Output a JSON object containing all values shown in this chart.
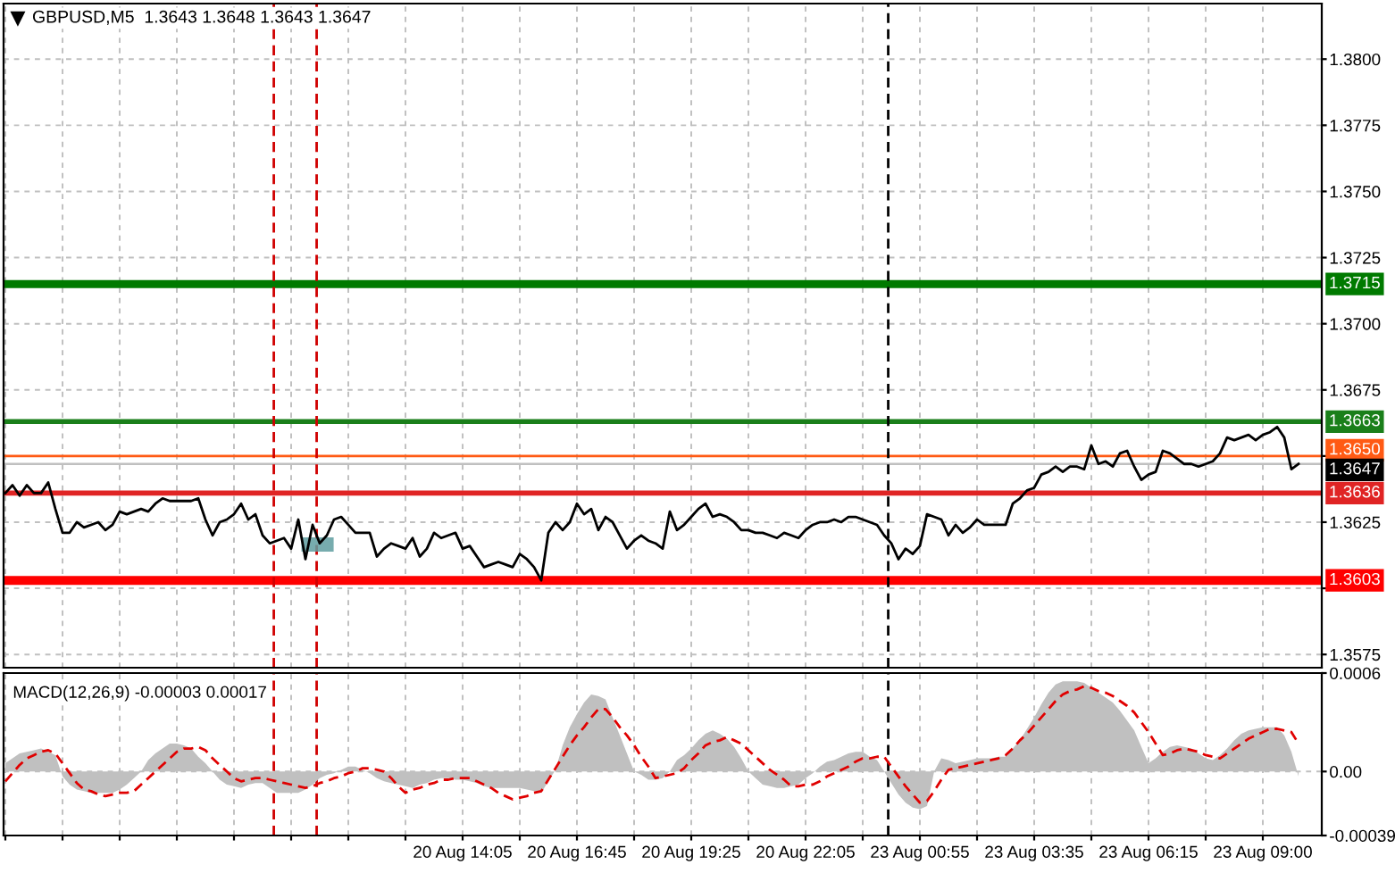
{
  "chart_data": [
    {
      "type": "line",
      "title": "GBPUSD,M5  1.3643 1.3648 1.3643 1.3647",
      "color": "#000000",
      "categories": [
        null,
        null,
        null,
        null,
        null,
        null,
        null,
        null,
        null,
        null,
        null,
        null,
        null,
        null,
        null,
        null,
        null,
        null,
        null,
        null,
        null,
        null,
        null,
        null,
        null,
        null,
        null,
        null,
        null,
        null,
        null,
        null,
        null,
        null,
        null,
        null,
        null,
        null,
        null,
        null,
        null,
        null,
        null,
        null,
        null,
        null,
        null,
        null,
        null,
        null,
        null,
        null,
        null,
        null,
        null,
        null,
        null,
        null,
        null,
        null,
        null,
        null,
        null,
        null,
        null,
        null,
        null,
        null,
        null,
        null,
        null,
        null,
        null,
        null,
        null,
        null,
        null,
        null,
        null,
        null,
        null,
        null,
        null,
        null,
        null,
        null,
        null,
        null,
        null,
        null,
        null,
        null,
        null,
        null,
        null,
        null,
        null,
        null,
        null,
        null,
        null,
        null,
        null,
        null,
        null,
        null,
        null,
        null,
        null,
        null,
        null,
        null,
        null,
        null,
        null,
        null,
        null,
        null,
        null,
        null,
        null,
        null,
        null,
        null,
        null,
        null,
        null,
        null,
        null,
        null,
        null,
        null,
        null,
        null,
        null,
        null,
        null,
        null,
        null,
        null,
        null,
        null,
        null,
        null,
        null,
        null,
        null,
        null,
        null,
        null,
        null,
        null,
        null,
        null,
        null,
        null,
        null,
        null,
        null,
        null,
        null,
        null,
        null,
        null,
        null,
        null,
        null,
        null,
        null,
        null,
        null,
        null,
        null,
        null,
        null,
        null,
        null,
        null,
        null,
        null,
        null,
        null
      ],
      "values": [
        1.3636,
        1.3639,
        1.3635,
        1.3639,
        1.3636,
        1.3636,
        1.364,
        1.363,
        1.3621,
        1.3621,
        1.3625,
        1.3623,
        1.3624,
        1.3625,
        1.3622,
        1.3624,
        1.3629,
        1.3628,
        1.3629,
        1.363,
        1.3629,
        1.3632,
        1.3634,
        1.3633,
        1.3633,
        1.3633,
        1.3633,
        1.3634,
        1.3626,
        1.362,
        1.3625,
        1.3626,
        1.3628,
        1.3632,
        1.3626,
        1.3628,
        1.362,
        1.3617,
        1.3618,
        1.3619,
        1.3615,
        1.3626,
        1.3611,
        1.3624,
        1.3617,
        1.362,
        1.3626,
        1.3627,
        1.3624,
        1.3621,
        1.3621,
        1.3621,
        1.3612,
        1.3615,
        1.3617,
        1.3616,
        1.3615,
        1.3619,
        1.3612,
        1.3615,
        1.3621,
        1.3619,
        1.362,
        1.3621,
        1.3615,
        1.3616,
        1.3612,
        1.3608,
        1.3609,
        1.361,
        1.3609,
        1.3608,
        1.3613,
        1.3611,
        1.3608,
        1.3603,
        1.3621,
        1.3625,
        1.3622,
        1.3625,
        1.3632,
        1.3628,
        1.363,
        1.3622,
        1.3627,
        1.3625,
        1.362,
        1.3615,
        1.3618,
        1.362,
        1.3618,
        1.3617,
        1.3615,
        1.3629,
        1.3622,
        1.3624,
        1.3627,
        1.363,
        1.3632,
        1.3627,
        1.3628,
        1.3627,
        1.3625,
        1.3622,
        1.3622,
        1.3621,
        1.3621,
        1.362,
        1.3619,
        1.3621,
        1.362,
        1.3619,
        1.3622,
        1.3624,
        1.3625,
        1.3625,
        1.3626,
        1.3625,
        1.3627,
        1.3627,
        1.3626,
        1.3625,
        1.3624,
        1.362,
        1.3617,
        1.3611,
        1.3615,
        1.3613,
        1.3616,
        1.3628,
        1.3627,
        1.3626,
        1.362,
        1.3624,
        1.3621,
        1.3623,
        1.3626,
        1.3624,
        1.3624,
        1.3624,
        1.3624,
        1.3632,
        1.3634,
        1.3637,
        1.3638,
        1.3643,
        1.3644,
        1.3646,
        1.3644,
        1.3646,
        1.3646,
        1.3645,
        1.3654,
        1.3647,
        1.3648,
        1.3646,
        1.3651,
        1.3652,
        1.3646,
        1.3641,
        1.3643,
        1.3644,
        1.3652,
        1.3651,
        1.3649,
        1.3647,
        1.3647,
        1.3646,
        1.3647,
        1.3648,
        1.3651,
        1.3657,
        1.3656,
        1.3657,
        1.3658,
        1.3656,
        1.3658,
        1.3659,
        1.3661,
        1.3657,
        1.3645,
        1.3647
      ],
      "ylim": [
        1.357,
        1.3821
      ],
      "yticks": [
        1.3575,
        {
          "value": 1.36,
          "label": null
        },
        1.3625,
        {
          "value": 1.365,
          "label": null
        },
        1.3675,
        {
          "value": 1.37,
          "label": "1.3700"
        },
        1.3725,
        {
          "value": 1.375,
          "label": "1.3750"
        },
        1.3775,
        {
          "value": 1.38,
          "label": "1.3800"
        }
      ],
      "grid": true,
      "tick_labels": "y",
      "ref_lines": [
        {
          "axis": "y",
          "value": 1.3715,
          "label": "1.3715",
          "color": "#007a00"
        },
        {
          "axis": "y",
          "value": 1.3663,
          "label": "1.3663",
          "color": "#1a7f1a"
        },
        {
          "axis": "y",
          "value": 1.365,
          "label": "1.3650",
          "color": "#ff5a14"
        },
        {
          "axis": "y",
          "value": 1.3647,
          "label": "1.3647",
          "color": "#c0c0c0"
        },
        {
          "axis": "y",
          "value": 1.3636,
          "label": "1.3636",
          "color": "#e02424"
        },
        {
          "axis": "y",
          "value": 1.3603,
          "label": "1.3603",
          "color": "#ff0000"
        }
      ]
    },
    {
      "type": "area",
      "title": "MACD(12,26,9) -0.00003 0.00017",
      "categories": [
        null,
        null,
        null,
        null,
        null,
        null,
        null,
        null,
        null,
        null,
        null,
        null,
        null,
        null,
        null,
        null,
        null,
        null,
        null,
        null,
        null,
        null,
        null,
        null,
        null,
        null,
        null,
        null,
        null,
        null,
        null,
        null,
        null,
        null,
        null,
        null,
        null,
        null,
        null,
        null,
        null,
        null,
        null,
        null,
        null,
        null,
        null,
        null,
        null,
        null,
        null,
        null,
        null,
        null,
        null,
        null,
        null,
        null,
        null,
        null,
        null,
        null,
        null,
        null,
        "20 Aug 14:05",
        null,
        null,
        null,
        null,
        null,
        null,
        null,
        null,
        null,
        null,
        null,
        null,
        null,
        null,
        null,
        "20 Aug 16:45",
        null,
        null,
        null,
        null,
        null,
        null,
        null,
        null,
        null,
        null,
        null,
        null,
        null,
        null,
        null,
        "20 Aug 19:25",
        null,
        null,
        null,
        null,
        null,
        null,
        null,
        null,
        null,
        null,
        null,
        null,
        null,
        null,
        null,
        "20 Aug 22:05",
        null,
        null,
        null,
        null,
        null,
        null,
        null,
        null,
        null,
        null,
        null,
        null,
        null,
        null,
        null,
        "23 Aug 00:55",
        null,
        null,
        null,
        null,
        null,
        null,
        null,
        null,
        null,
        null,
        null,
        null,
        null,
        null,
        null,
        "23 Aug 03:35",
        null,
        null,
        null,
        null,
        null,
        null,
        null,
        null,
        null,
        null,
        null,
        null,
        null,
        null,
        null,
        "23 Aug 06:15",
        null,
        null,
        null,
        null,
        null,
        null,
        null,
        null,
        null,
        null,
        null,
        null,
        null,
        null,
        null,
        "23 Aug 09:00",
        null,
        null,
        null,
        null,
        null
      ],
      "series": [
        {
          "type": "area",
          "color": "#c0c0c0",
          "values": [
            5e-05,
            8e-05,
            0.00011,
            0.00012,
            0.00013,
            0.00014,
            0.00012,
            0.0001,
            -3e-05,
            -8e-05,
            -0.00011,
            -0.00012,
            -0.00013,
            -0.00013,
            -0.00013,
            -0.00013,
            -0.00011,
            -8e-05,
            -4e-05,
            0,
            7e-05,
            0.00011,
            0.00014,
            0.00017,
            0.00017,
            0.00016,
            0.00014,
            9e-05,
            5e-05,
            0,
            -5e-05,
            -8e-05,
            -9e-05,
            -0.0001,
            -8e-05,
            -7e-05,
            -7e-05,
            -0.0001,
            -0.00013,
            -0.00013,
            -0.00013,
            -0.00013,
            -0.00011,
            -8e-05,
            -4e-05,
            -2e-05,
            -1e-05,
            1e-05,
            3e-05,
            3e-05,
            1e-05,
            -1e-05,
            -4e-05,
            -6e-05,
            -7e-05,
            -8e-05,
            -9e-05,
            -0.0001,
            -8e-05,
            -7e-05,
            -5e-05,
            -4e-05,
            -4e-05,
            -5e-05,
            -5e-05,
            -6e-05,
            -7e-05,
            -9e-05,
            -0.0001,
            -0.0001,
            -0.0001,
            -0.0001,
            -0.0001,
            -0.00011,
            -0.00012,
            -0.00013,
            -6e-05,
            1e-05,
            0.00016,
            0.00027,
            0.00035,
            0.00042,
            0.00047,
            0.00046,
            0.00044,
            0.00033,
            0.00022,
            0.00011,
            0,
            -2e-05,
            -5e-05,
            -5e-05,
            -4e-05,
            0,
            7e-05,
            0.0001,
            0.00014,
            0.00019,
            0.00023,
            0.00025,
            0.00023,
            0.0002,
            0.00015,
            8e-05,
            0,
            -4e-05,
            -8e-05,
            -9e-05,
            -0.0001,
            -0.0001,
            -9e-05,
            -8e-05,
            -4e-05,
            -1e-05,
            3e-05,
            6e-05,
            7e-05,
            9e-05,
            0.00011,
            0.00012,
            0.00012,
            9e-05,
            7e-05,
            0,
            -7e-05,
            -0.00014,
            -0.00019,
            -0.00022,
            -0.00023,
            -0.00021,
            0,
            8e-05,
            7e-05,
            5e-05,
            6e-05,
            7e-05,
            8e-05,
            8e-05,
            8e-05,
            9e-05,
            9e-05,
            0.00014,
            0.00019,
            0.00026,
            0.00033,
            0.00041,
            0.00048,
            0.00053,
            0.00055,
            0.00055,
            0.00055,
            0.00054,
            0.00051,
            0.00048,
            0.00045,
            0.00042,
            0.00037,
            0.00031,
            0.00025,
            0.00015,
            5e-05,
            8e-05,
            0.00012,
            0.00015,
            0.00016,
            0.00015,
            0.00014,
            0.00011,
            8e-05,
            7e-05,
            0.0001,
            0.00014,
            0.00019,
            0.00023,
            0.00025,
            0.00026,
            0.00027,
            0.00027,
            0.00027,
            0.00022,
            0.00012,
            -3e-05
          ]
        },
        {
          "type": "line",
          "color": "#e00000",
          "line_style": "dashed",
          "values": [
            -6e-05,
            -1e-05,
            4e-05,
            8e-05,
            0.0001,
            0.00012,
            0.00013,
            0.00011,
            5e-05,
            -1e-05,
            -7e-05,
            -0.00011,
            -0.00012,
            -0.00014,
            -0.00015,
            -0.00014,
            -0.00013,
            -0.00013,
            -0.00012,
            -8e-05,
            -4e-05,
            0,
            4e-05,
            8e-05,
            0.00012,
            0.00014,
            0.00014,
            0.00015,
            0.00013,
            8e-05,
            4e-05,
            0,
            -4e-05,
            -6e-05,
            -5e-05,
            -4e-05,
            -4e-05,
            -5e-05,
            -6e-05,
            -7e-05,
            -8e-05,
            -9e-05,
            -0.0001,
            -9e-05,
            -7e-05,
            -6e-05,
            -4e-05,
            -3e-05,
            -1e-05,
            0,
            2e-05,
            2e-05,
            1e-05,
            0,
            -4e-05,
            -9e-05,
            -0.00013,
            -0.00011,
            -0.0001,
            -8e-05,
            -7e-05,
            -5e-05,
            -5e-05,
            -4e-05,
            -4e-05,
            -4e-05,
            -6e-05,
            -8e-05,
            -0.0001,
            -0.00013,
            -0.00015,
            -0.00017,
            -0.00016,
            -0.00015,
            -0.00013,
            -0.00012,
            -5e-05,
            2e-05,
            9e-05,
            0.00016,
            0.00022,
            0.00027,
            0.00033,
            0.00038,
            0.00038,
            0.00033,
            0.00027,
            0.00022,
            0.00016,
            9e-05,
            3e-05,
            -4e-05,
            -3e-05,
            -2e-05,
            -1e-05,
            2e-05,
            7e-05,
            0.00011,
            0.00016,
            0.00018,
            0.00019,
            0.00021,
            0.00019,
            0.00017,
            0.00013,
            9e-05,
            5e-05,
            1e-05,
            -2e-05,
            -5e-05,
            -9e-05,
            -9e-05,
            -8e-05,
            -8e-05,
            -6e-05,
            -3e-05,
            -1e-05,
            1e-05,
            3e-05,
            6e-05,
            8e-05,
            8e-05,
            9e-05,
            9e-05,
            3e-05,
            -3e-05,
            -9e-05,
            -0.00014,
            -0.00019,
            -0.00018,
            -0.00012,
            -5e-05,
            1e-05,
            2e-05,
            3e-05,
            4e-05,
            5e-05,
            6e-05,
            7e-05,
            8e-05,
            0.0001,
            0.00014,
            0.00019,
            0.00023,
            0.00028,
            0.00033,
            0.00038,
            0.00043,
            0.00047,
            0.00049,
            0.0005,
            0.00052,
            0.00051,
            0.00049,
            0.00048,
            0.00046,
            0.00043,
            0.0004,
            0.00036,
            0.0003,
            0.00024,
            0.00017,
            0.0001,
            0.00011,
            0.00013,
            0.00014,
            0.00013,
            0.00012,
            0.0001,
            9e-05,
            8e-05,
            0.00011,
            0.00014,
            0.00017,
            0.0002,
            0.00022,
            0.00024,
            0.00026,
            0.00026,
            0.00025,
            0.00024,
            0.00017
          ]
        }
      ],
      "ylim": [
        -0.00039,
        0.0006
      ],
      "yticks": [
        {
          "value": -0.00039,
          "label": "-0.00039"
        },
        {
          "value": 0,
          "label": "0.00"
        },
        {
          "value": 0.0006,
          "label": "0.0006"
        }
      ],
      "grid": true
    }
  ]
}
